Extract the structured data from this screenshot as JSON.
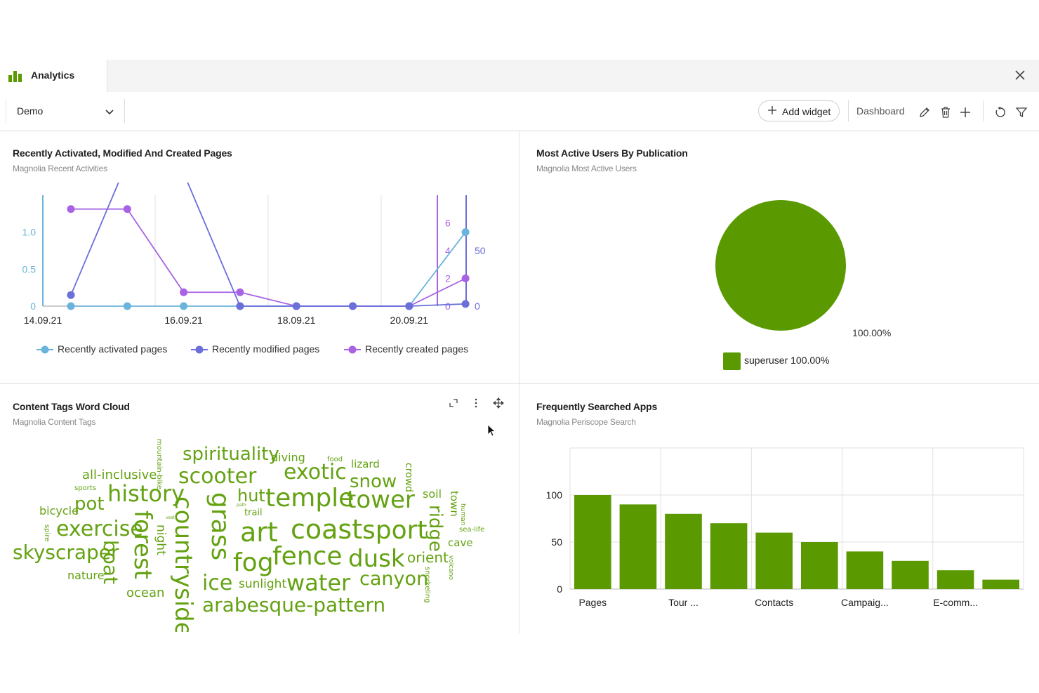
{
  "tab": {
    "label": "Analytics"
  },
  "toolbar": {
    "select_value": "Demo",
    "add_widget_label": "Add widget",
    "dashboard_label": "Dashboard"
  },
  "colors": {
    "accent": "#5a9a00",
    "activated": "#6ab4dc",
    "modified": "#6a6fd9",
    "created": "#a862e3"
  },
  "panels": {
    "recent": {
      "title": "Recently Activated, Modified And Created Pages",
      "subtitle": "Magnolia Recent Activities"
    },
    "users": {
      "title": "Most Active Users By Publication",
      "subtitle": "Magnolia Most Active Users"
    },
    "wordcloud": {
      "title": "Content Tags Word Cloud",
      "subtitle": "Magnolia Content Tags"
    },
    "apps": {
      "title": "Frequently Searched Apps",
      "subtitle": "Magnolia Periscope Search"
    }
  },
  "chart_data": [
    {
      "type": "line",
      "x_ticks": [
        "14.09.21",
        "16.09.21",
        "18.09.21",
        "20.09.21"
      ],
      "x": [
        "14.09.21",
        "15.09.21",
        "16.09.21",
        "17.09.21",
        "18.09.21",
        "19.09.21",
        "20.09.21",
        "21.09.21"
      ],
      "series": [
        {
          "name": "Recently activated pages",
          "axis": "left",
          "values": [
            0,
            0,
            0,
            0,
            0,
            0,
            0,
            1.0
          ]
        },
        {
          "name": "Recently modified pages",
          "axis": "right2",
          "values": [
            10,
            130,
            120,
            0,
            0,
            0,
            0,
            2
          ]
        },
        {
          "name": "Recently created pages",
          "axis": "right1",
          "values": [
            7,
            7,
            1,
            1,
            0,
            0,
            0,
            2
          ]
        }
      ],
      "y_left": {
        "ticks": [
          "0",
          "0.5",
          "1.0"
        ],
        "ylim": [
          0,
          1.5
        ]
      },
      "y_right1": {
        "ticks": [
          "0",
          "2",
          "4",
          "6"
        ],
        "ylim": [
          0,
          8
        ]
      },
      "y_right2": {
        "ticks": [
          "0",
          "50"
        ],
        "ylim": [
          0,
          100
        ]
      },
      "legend_position": "bottom"
    },
    {
      "type": "pie",
      "slices": [
        {
          "label": "superuser",
          "value": 100
        }
      ],
      "value_label": "100.00%",
      "legend_label": "superuser 100.00%",
      "legend_position": "bottom"
    },
    {
      "type": "bar",
      "categories": [
        "Pages",
        "",
        "Tour ...",
        "",
        "Contacts",
        "",
        "Campaig...",
        "",
        "E-comm...",
        ""
      ],
      "values": [
        100,
        90,
        80,
        70,
        60,
        50,
        40,
        30,
        20,
        10
      ],
      "y_ticks": [
        "0",
        "50",
        "100"
      ],
      "ylim": [
        0,
        150
      ],
      "grid": true
    }
  ],
  "wordcloud": {
    "words": [
      {
        "text": "spirituality",
        "size": 26
      },
      {
        "text": "diving",
        "size": 16
      },
      {
        "text": "food",
        "size": 10
      },
      {
        "text": "lizard",
        "size": 15
      },
      {
        "text": "crowd",
        "size": 14
      },
      {
        "text": "mountain-bike",
        "size": 10
      },
      {
        "text": "all-inclusive",
        "size": 18
      },
      {
        "text": "scooter",
        "size": 30
      },
      {
        "text": "exotic",
        "size": 30
      },
      {
        "text": "snow",
        "size": 26
      },
      {
        "text": "sports",
        "size": 10
      },
      {
        "text": "history",
        "size": 32
      },
      {
        "text": "grass",
        "size": 36
      },
      {
        "text": "hut",
        "size": 24
      },
      {
        "text": "path",
        "size": 6
      },
      {
        "text": "trail",
        "size": 13
      },
      {
        "text": "temple",
        "size": 36
      },
      {
        "text": "tower",
        "size": 34
      },
      {
        "text": "soil",
        "size": 16
      },
      {
        "text": "town",
        "size": 15
      },
      {
        "text": "human",
        "size": 9
      },
      {
        "text": "bicycle",
        "size": 16
      },
      {
        "text": "pot",
        "size": 26
      },
      {
        "text": "countryside",
        "size": 34
      },
      {
        "text": "ridge",
        "size": 26
      },
      {
        "text": "vest",
        "size": 6
      },
      {
        "text": "spire",
        "size": 10
      },
      {
        "text": "exercise",
        "size": 30
      },
      {
        "text": "forest",
        "size": 34
      },
      {
        "text": "night",
        "size": 17
      },
      {
        "text": "art",
        "size": 38
      },
      {
        "text": "coast",
        "size": 38
      },
      {
        "text": "sport",
        "size": 36
      },
      {
        "text": "sea-life",
        "size": 10
      },
      {
        "text": "cave",
        "size": 15
      },
      {
        "text": "skyscraper",
        "size": 28
      },
      {
        "text": "boat",
        "size": 28
      },
      {
        "text": "fog",
        "size": 36
      },
      {
        "text": "fence",
        "size": 36
      },
      {
        "text": "dusk",
        "size": 34
      },
      {
        "text": "orient",
        "size": 20
      },
      {
        "text": "volcano",
        "size": 9
      },
      {
        "text": "nature",
        "size": 16
      },
      {
        "text": "ice",
        "size": 30
      },
      {
        "text": "sunlight",
        "size": 17
      },
      {
        "text": "water",
        "size": 32
      },
      {
        "text": "canyon",
        "size": 27
      },
      {
        "text": "snorkeling",
        "size": 10
      },
      {
        "text": "ocean",
        "size": 18
      },
      {
        "text": "arabesque-pattern",
        "size": 28
      }
    ]
  },
  "icons": {
    "tab_icon": "bar-chart-icon",
    "close": "close-icon",
    "select_chevron": "chevron-down-icon",
    "add": "plus-icon",
    "edit": "pencil-icon",
    "delete": "trash-icon",
    "new": "plus-icon",
    "refresh": "refresh-icon",
    "filter": "filter-icon",
    "expand": "expand-icon",
    "more": "more-vertical-icon",
    "move": "move-icon"
  }
}
